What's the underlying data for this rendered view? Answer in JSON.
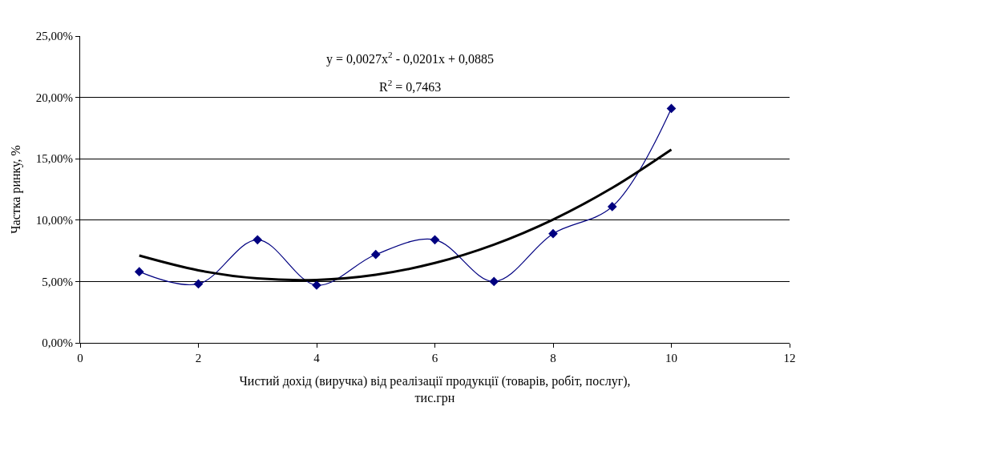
{
  "chart_data": {
    "type": "line",
    "xlabel": "Чистий дохід (виручка) від реалізації продукції (товарів, робіт, послуг),\nтис.грн",
    "ylabel": "Частка ринку, %",
    "x": [
      1,
      2,
      3,
      4,
      5,
      6,
      7,
      8,
      9,
      10
    ],
    "series": [
      {
        "color": "#000080",
        "marker": "diamond",
        "values": [
          5.8,
          4.8,
          8.4,
          4.7,
          7.2,
          8.4,
          5.0,
          8.9,
          11.1,
          19.1
        ]
      },
      {
        "type": "line",
        "color": "#000000",
        "marker": "none",
        "x": [
          1,
          2,
          3,
          4,
          5,
          6,
          7,
          8,
          9,
          10
        ],
        "values": [
          7.11,
          5.91,
          5.25,
          5.13,
          5.55,
          6.51,
          8.01,
          10.05,
          12.63,
          15.75
        ]
      }
    ],
    "xlim": [
      0,
      12
    ],
    "xticks": [
      0,
      2,
      4,
      6,
      8,
      10,
      12
    ],
    "ylim": [
      0,
      25
    ],
    "yticks": [
      {
        "value": 0,
        "label": "0,00%"
      },
      {
        "value": 5,
        "label": "5,00%"
      },
      {
        "value": 10,
        "label": "10,00%"
      },
      {
        "value": 15,
        "label": "15,00%"
      },
      {
        "value": 20,
        "label": "20,00%"
      },
      {
        "value": 25,
        "label": "25,00%"
      }
    ],
    "grid": "y",
    "annotations": [
      "y = 0,0027x$^{2}$ - 0,0201x + 0,0885",
      "R$^{2}$ = 0,7463"
    ]
  }
}
